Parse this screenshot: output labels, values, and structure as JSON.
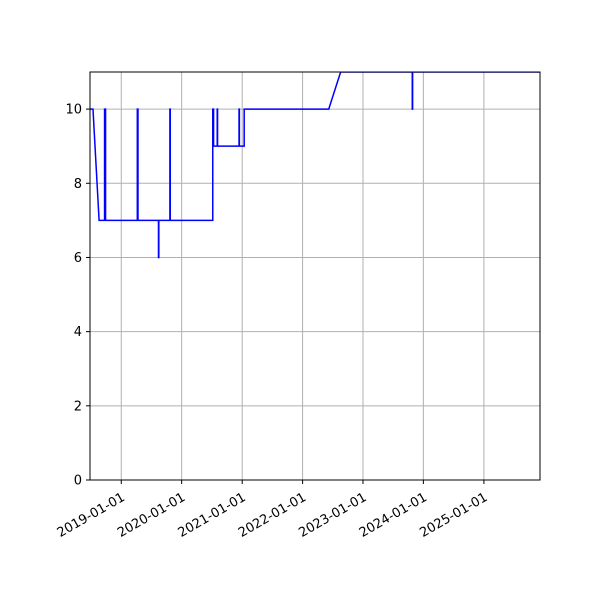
{
  "chart_data": {
    "type": "line",
    "title": "",
    "xlabel": "",
    "ylabel": "",
    "x_is_date": true,
    "xlim": [
      "2018-06-26",
      "2025-12-06"
    ],
    "ylim": [
      0,
      11
    ],
    "grid": true,
    "legend": "none",
    "x_ticks": [
      "2019-01-01",
      "2020-01-01",
      "2021-01-01",
      "2022-01-01",
      "2023-01-01",
      "2024-01-01",
      "2025-01-01"
    ],
    "y_ticks": [
      0,
      2,
      4,
      6,
      8,
      10
    ],
    "series": [
      {
        "color": "#0000ff",
        "points": [
          [
            "2018-06-26",
            10
          ],
          [
            "2018-07-14",
            10
          ],
          [
            "2018-08-20",
            7
          ],
          [
            "2018-09-22",
            7
          ],
          [
            "2018-09-22",
            10
          ],
          [
            "2018-09-28",
            10
          ],
          [
            "2018-09-28",
            7
          ],
          [
            "2019-04-08",
            7
          ],
          [
            "2019-04-08",
            10
          ],
          [
            "2019-04-12",
            10
          ],
          [
            "2019-04-12",
            7
          ],
          [
            "2019-08-14",
            7
          ],
          [
            "2019-08-14",
            6
          ],
          [
            "2019-08-16",
            6
          ],
          [
            "2019-08-16",
            7
          ],
          [
            "2019-10-22",
            7
          ],
          [
            "2019-10-22",
            10
          ],
          [
            "2019-10-24",
            10
          ],
          [
            "2019-10-24",
            7
          ],
          [
            "2020-07-07",
            7
          ],
          [
            "2020-07-07",
            10
          ],
          [
            "2020-07-12",
            10
          ],
          [
            "2020-07-12",
            9
          ],
          [
            "2020-08-03",
            9
          ],
          [
            "2020-08-03",
            10
          ],
          [
            "2020-08-05",
            10
          ],
          [
            "2020-08-05",
            9
          ],
          [
            "2020-12-13",
            9
          ],
          [
            "2020-12-13",
            10
          ],
          [
            "2020-12-15",
            10
          ],
          [
            "2020-12-15",
            9
          ],
          [
            "2021-01-13",
            9
          ],
          [
            "2021-01-13",
            10
          ],
          [
            "2022-06-08",
            10
          ],
          [
            "2022-08-19",
            11
          ],
          [
            "2023-10-26",
            11
          ],
          [
            "2023-10-26",
            10
          ],
          [
            "2023-10-28",
            10
          ],
          [
            "2023-10-28",
            11
          ],
          [
            "2025-12-06",
            11
          ]
        ]
      }
    ]
  }
}
